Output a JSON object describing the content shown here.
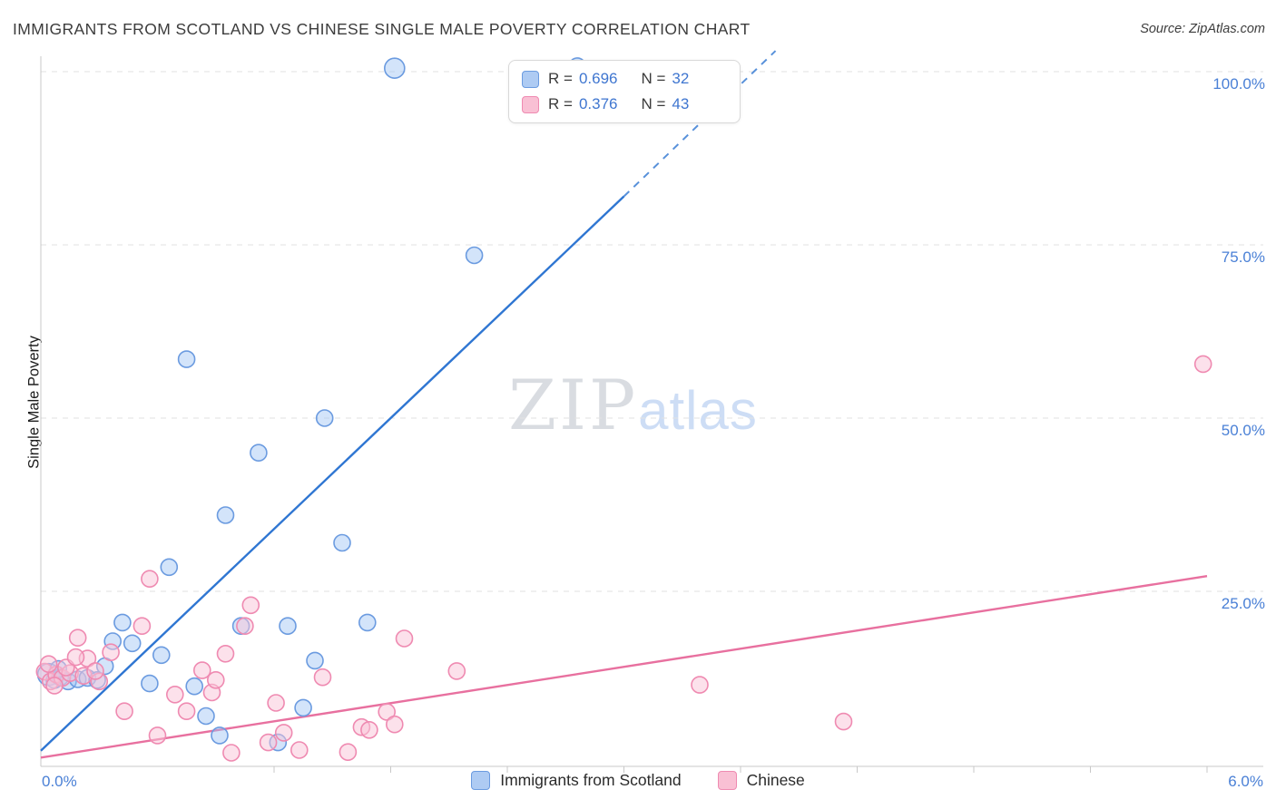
{
  "header": {
    "title": "IMMIGRANTS FROM SCOTLAND VS CHINESE SINGLE MALE POVERTY CORRELATION CHART",
    "source": "Source: ZipAtlas.com"
  },
  "watermark": {
    "part1": "ZIP",
    "part2": "atlas"
  },
  "y_axis": {
    "label": "Single Male Poverty",
    "ticks": [
      {
        "value": 100,
        "label": "100.0%"
      },
      {
        "value": 75,
        "label": "75.0%"
      },
      {
        "value": 50,
        "label": "50.0%"
      },
      {
        "value": 25,
        "label": "25.0%"
      }
    ]
  },
  "x_axis": {
    "min": 0,
    "max": 6,
    "min_label": "0.0%",
    "max_label": "6.0%",
    "tick_values": [
      1.2,
      1.8,
      2.4,
      3.0,
      3.6,
      4.2,
      4.8,
      5.4,
      6.0
    ]
  },
  "legend_box": {
    "series": [
      {
        "r_label": "R =",
        "r_value": "0.696",
        "n_label": "N =",
        "n_value": "32",
        "color": "blue"
      },
      {
        "r_label": "R =",
        "r_value": "0.376",
        "n_label": "N =",
        "n_value": "43",
        "color": "pink"
      }
    ]
  },
  "bottom_legend": {
    "items": [
      {
        "label": "Immigrants from Scotland",
        "color": "blue"
      },
      {
        "label": "Chinese",
        "color": "pink"
      }
    ]
  },
  "colors": {
    "blue_stroke": "#6b9be0",
    "blue_fill": "rgba(158,196,244,0.45)",
    "blue_line": "#2f76d2",
    "pink_stroke": "#ef8ab1",
    "pink_fill": "rgba(249,196,215,0.5)",
    "pink_line": "#e8709f",
    "grid": "#e2e2e2",
    "axis": "#c8c8c8",
    "tick_label": "#4a80d6"
  },
  "chart_data": {
    "type": "scatter",
    "title": "IMMIGRANTS FROM SCOTLAND VS CHINESE SINGLE MALE POVERTY CORRELATION CHART",
    "xlabel": "Immigrants from Scotland (%)",
    "ylabel": "Single Male Poverty",
    "xlim": [
      0,
      6
    ],
    "ylim": [
      0,
      105
    ],
    "grid": "horizontal-dashed",
    "legend_position": "bottom-center",
    "series": [
      {
        "name": "Immigrants from Scotland",
        "R": 0.696,
        "N": 32,
        "points": [
          [
            1.82,
            100.5,
            11
          ],
          [
            2.76,
            100.8
          ],
          [
            2.23,
            73.5
          ],
          [
            0.75,
            58.5
          ],
          [
            1.46,
            50.0
          ],
          [
            1.12,
            45.0
          ],
          [
            0.95,
            36.0
          ],
          [
            1.55,
            32.0
          ],
          [
            0.66,
            28.5
          ],
          [
            0.42,
            20.5
          ],
          [
            1.27,
            20.0
          ],
          [
            1.68,
            20.5
          ],
          [
            1.03,
            20.0
          ],
          [
            0.47,
            17.5
          ],
          [
            0.37,
            17.8
          ],
          [
            0.62,
            15.8
          ],
          [
            1.41,
            15.0
          ],
          [
            0.79,
            11.3
          ],
          [
            0.56,
            11.7
          ],
          [
            0.85,
            7.0
          ],
          [
            1.35,
            8.2
          ],
          [
            0.92,
            4.2
          ],
          [
            1.22,
            3.2
          ],
          [
            0.04,
            13.0,
            12
          ],
          [
            0.07,
            12.2
          ],
          [
            0.1,
            12.6
          ],
          [
            0.14,
            12.0
          ],
          [
            0.19,
            12.3
          ],
          [
            0.24,
            12.5
          ],
          [
            0.29,
            12.2
          ],
          [
            0.09,
            13.8
          ],
          [
            0.33,
            14.2
          ]
        ]
      },
      {
        "name": "Chinese",
        "R": 0.376,
        "N": 43,
        "points": [
          [
            5.98,
            57.8
          ],
          [
            0.56,
            26.8
          ],
          [
            1.08,
            23.0
          ],
          [
            0.19,
            18.3
          ],
          [
            0.52,
            20.0
          ],
          [
            1.05,
            20.0
          ],
          [
            1.87,
            18.2
          ],
          [
            0.24,
            15.3
          ],
          [
            2.14,
            13.5
          ],
          [
            3.39,
            11.5
          ],
          [
            1.45,
            12.6
          ],
          [
            0.69,
            10.1
          ],
          [
            0.88,
            10.4
          ],
          [
            0.75,
            7.7
          ],
          [
            1.21,
            8.9
          ],
          [
            1.78,
            7.6
          ],
          [
            1.82,
            5.8
          ],
          [
            1.65,
            5.4
          ],
          [
            1.69,
            5.0
          ],
          [
            4.13,
            6.2
          ],
          [
            1.17,
            3.2
          ],
          [
            1.33,
            2.1
          ],
          [
            1.58,
            1.8
          ],
          [
            0.6,
            4.2
          ],
          [
            0.98,
            1.7
          ],
          [
            0.43,
            7.7
          ],
          [
            0.83,
            13.6
          ],
          [
            0.3,
            12.0
          ],
          [
            0.02,
            13.4
          ],
          [
            0.05,
            12.0
          ],
          [
            0.08,
            13.0
          ],
          [
            0.11,
            12.5
          ],
          [
            0.15,
            13.2
          ],
          [
            0.04,
            14.5
          ],
          [
            0.07,
            11.4
          ],
          [
            0.36,
            16.2
          ],
          [
            0.95,
            16.0
          ],
          [
            0.13,
            14.0
          ],
          [
            0.22,
            12.8
          ],
          [
            0.28,
            13.5
          ],
          [
            1.25,
            4.6
          ],
          [
            0.9,
            12.2
          ],
          [
            0.18,
            15.5
          ]
        ]
      }
    ],
    "trend_lines": [
      {
        "series": "Immigrants from Scotland",
        "solid": [
          [
            0,
            2.0
          ],
          [
            3.0,
            82.0
          ]
        ],
        "dashed": [
          [
            3.0,
            82.0
          ],
          [
            3.78,
            103.0
          ]
        ]
      },
      {
        "series": "Chinese",
        "solid": [
          [
            0,
            1.0
          ],
          [
            6.0,
            27.2
          ]
        ]
      }
    ]
  }
}
